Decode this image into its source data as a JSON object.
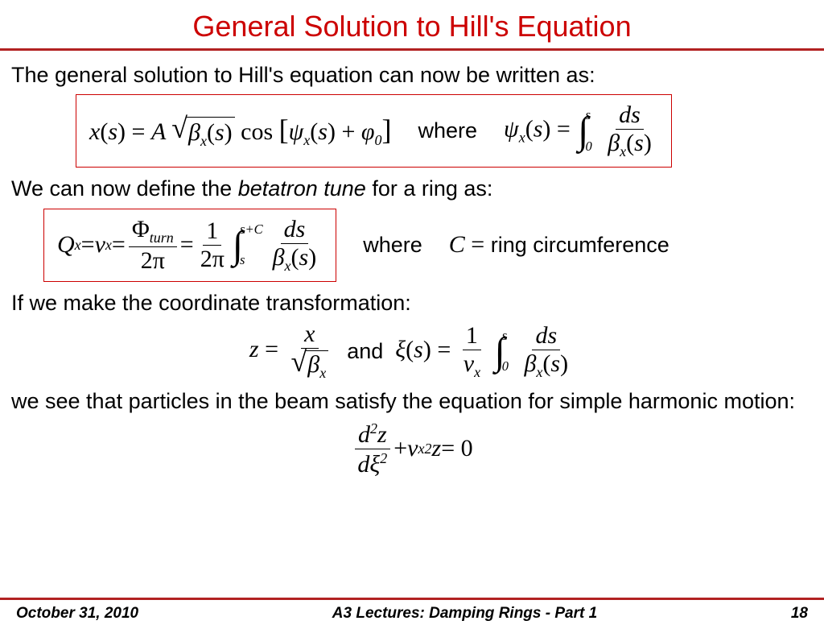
{
  "title": "General Solution to Hill's Equation",
  "colors": {
    "title": "#cc0000",
    "rule": "#b22222",
    "box_border": "#cc0000",
    "text": "#000000",
    "background": "#ffffff"
  },
  "text": {
    "line1": "The general solution to Hill's equation can now be written as:",
    "line2_a": "We can now define the ",
    "line2_b": "betatron tune",
    "line2_c": " for a ring as:",
    "line3": "If we make the coordinate transformation:",
    "line4": "we see that particles in the beam satisfy the equation for simple harmonic motion:"
  },
  "where": "where",
  "and": "and",
  "ring_circ": "ring circumference",
  "eq1": {
    "lhs_var": "x",
    "arg": "s",
    "A": "A",
    "beta": "β",
    "subx": "x",
    "cos": "cos",
    "psi": "ψ",
    "phi0": "φ",
    "zero": "0",
    "ds": "ds",
    "int_lo": "0",
    "int_hi": "s"
  },
  "eq2": {
    "Q": "Q",
    "nu": "ν",
    "Phi": "Φ",
    "turn": "turn",
    "twopi": "2π",
    "one": "1",
    "C": "C",
    "sC": "s+C",
    "s": "s"
  },
  "eq3": {
    "z": "z",
    "x": "x",
    "xi": "ξ"
  },
  "eq4": {
    "d2z": "d",
    "two": "2",
    "z": "z",
    "xi": "ξ",
    "nu": "ν",
    "eq0": " = 0"
  },
  "footer": {
    "date": "October 31, 2010",
    "mid": "A3 Lectures:  Damping Rings - Part 1",
    "page": "18"
  }
}
